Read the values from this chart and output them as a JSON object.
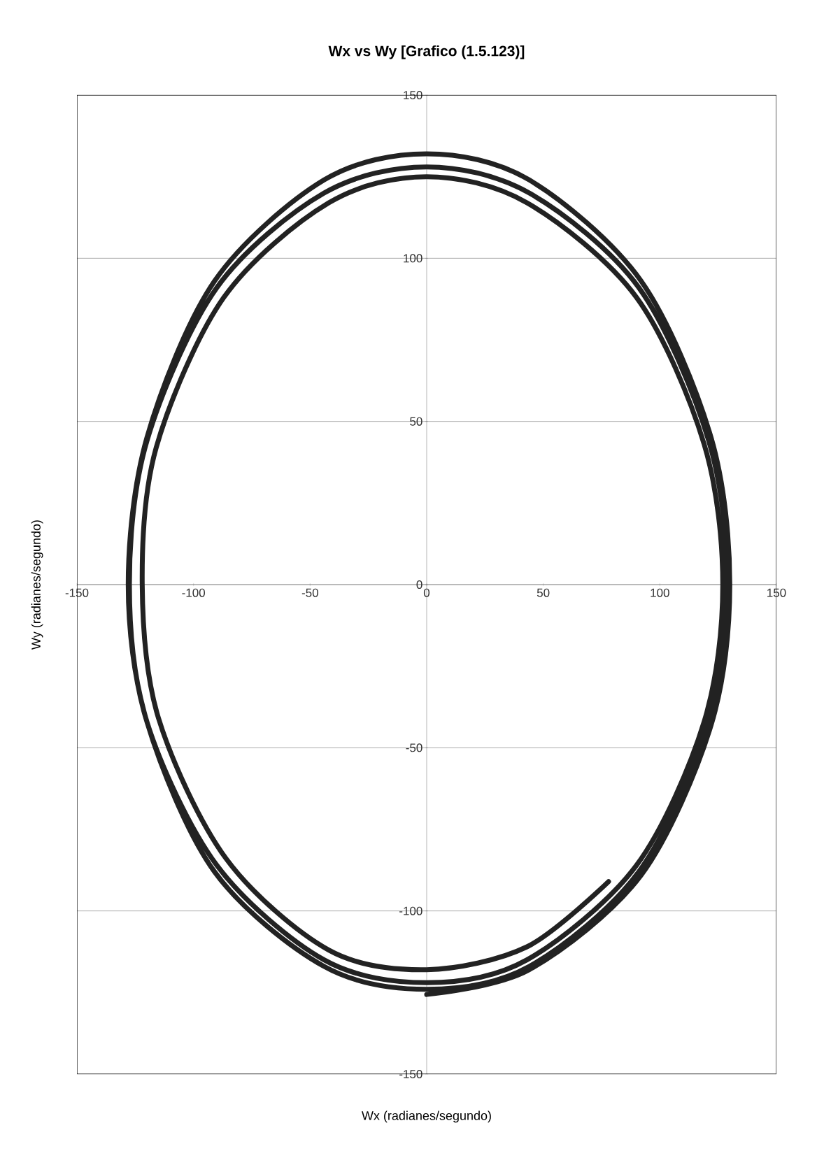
{
  "chart_data": {
    "type": "line",
    "title": "Wx vs Wy [Grafico (1.5.123)]",
    "xlabel": "Wx (radianes/segundo)",
    "ylabel": "Wy (radianes/segundo)",
    "xlim": [
      -150,
      150
    ],
    "ylim": [
      -150,
      150
    ],
    "xticks": [
      -150,
      -100,
      -50,
      0,
      50,
      100,
      150
    ],
    "yticks": [
      -150,
      -100,
      -50,
      0,
      50,
      100,
      150
    ],
    "grid": "y",
    "series": [
      {
        "color": "#222222",
        "x": [
          78,
          43,
          0,
          -42,
          -86,
          -115,
          -122,
          -116,
          -87,
          -42,
          0,
          43,
          90,
          119,
          127,
          119,
          90,
          43,
          0,
          -44,
          -90,
          -120,
          -127.5,
          -120,
          -90,
          -44,
          0,
          44,
          91,
          121,
          129,
          121,
          91,
          44,
          0,
          -44,
          -91,
          -120,
          -128,
          -120,
          -91,
          -44,
          0,
          44,
          92,
          122,
          130,
          122,
          92,
          44,
          0
        ],
        "values": [
          -91,
          -111,
          -118,
          -112,
          -84,
          -41,
          0,
          42,
          88,
          117,
          125,
          117,
          88,
          43,
          0,
          -42,
          -86,
          -115,
          -122,
          -115,
          -86,
          -42,
          0,
          44,
          91,
          120,
          128,
          120,
          91,
          44,
          0,
          -42,
          -88,
          -117,
          -124,
          -117,
          -88,
          -42,
          0,
          45,
          93,
          124,
          132,
          124,
          93,
          45,
          0,
          -43,
          -89,
          -118,
          -125.6
        ]
      }
    ]
  }
}
